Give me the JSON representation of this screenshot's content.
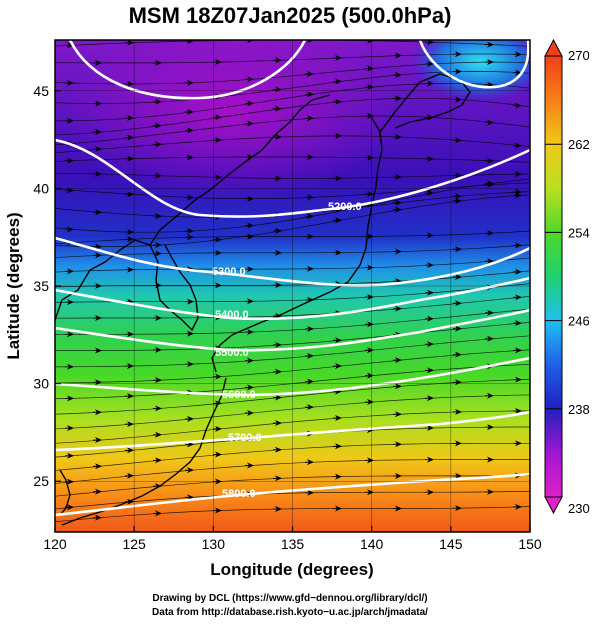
{
  "title": "MSM 18Z07Jan2025 (500.0hPa)",
  "x_axis": {
    "label": "Longitude (degrees)",
    "range": [
      120,
      150
    ],
    "ticks": [
      "120",
      "125",
      "130",
      "135",
      "140",
      "145",
      "150"
    ]
  },
  "y_axis": {
    "label": "Latitude  (degrees)",
    "range": [
      22.4,
      47.6
    ],
    "ticks": [
      "25",
      "30",
      "35",
      "40",
      "45"
    ]
  },
  "colorbar": {
    "range": [
      230,
      270
    ],
    "ticks": [
      "230",
      "238",
      "246",
      "254",
      "262",
      "270"
    ],
    "colors": [
      "#d81ad8",
      "#8a1ac8",
      "#2020c8",
      "#2070e8",
      "#20c8f0",
      "#20c878",
      "#40d828",
      "#a8e020",
      "#f0d818",
      "#f89018",
      "#f04818"
    ]
  },
  "contours": {
    "color": "#ffffff",
    "labels": [
      "5200.0",
      "5300.0",
      "5400.0",
      "5500.0",
      "5600.0",
      "5700.0",
      "5800.0"
    ]
  },
  "credits": {
    "line1": "Drawing by DCL (https://www.gfd−dennou.org/library/dcl/)",
    "line2": "Data from http://database.rish.kyoto−u.ac.jp/arch/jmadata/"
  }
}
